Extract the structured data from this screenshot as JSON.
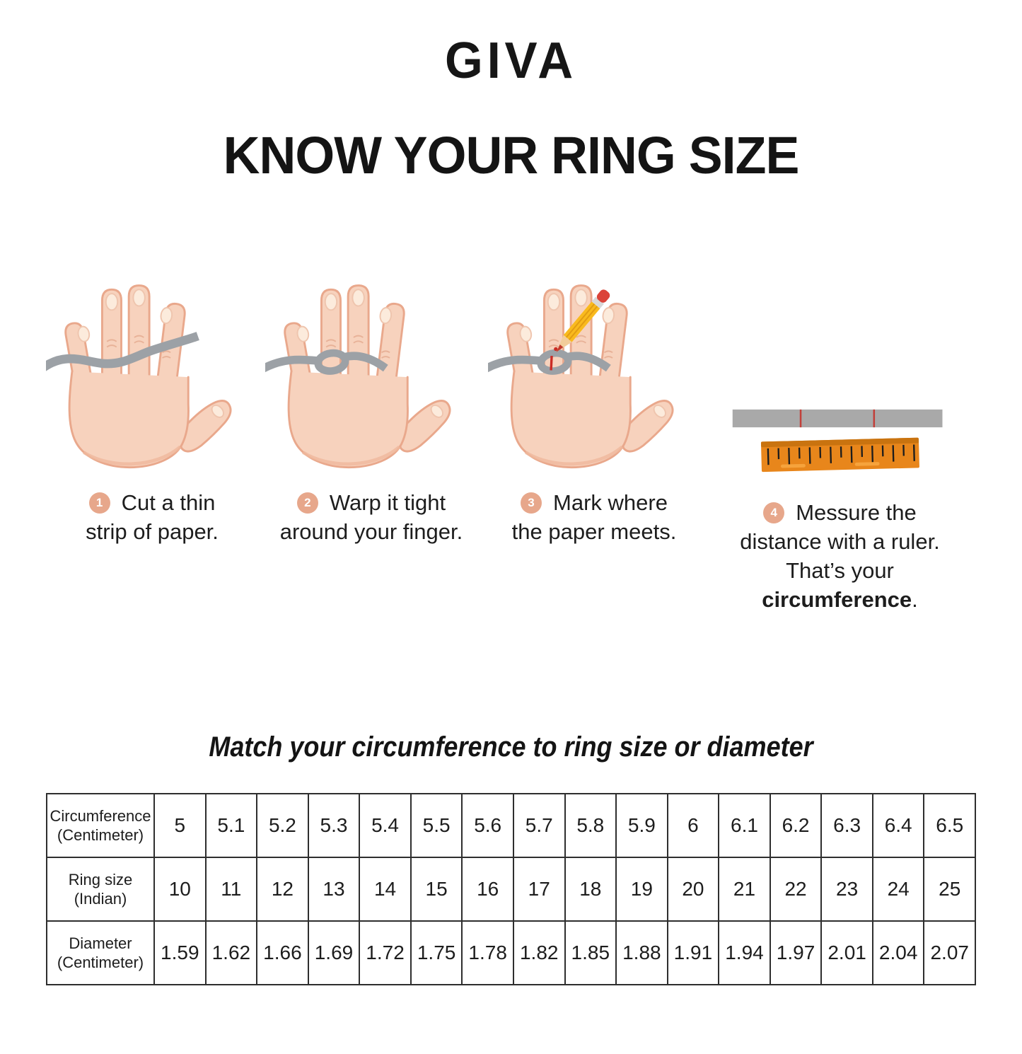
{
  "brand": {
    "logo_text": "GIVA"
  },
  "title": "KNOW YOUR RING SIZE",
  "steps": [
    {
      "number": "1",
      "line1": "Cut a thin",
      "line2": "strip of paper."
    },
    {
      "number": "2",
      "line1": "Warp it tight",
      "line2": "around your finger."
    },
    {
      "number": "3",
      "line1": "Mark where",
      "line2": "the paper meets."
    },
    {
      "number": "4",
      "line1": "Messure the",
      "line2": "distance with a ruler.",
      "line3_prefix": "That’s your ",
      "line3_bold": "circumference",
      "line3_suffix": "."
    }
  ],
  "subtitle": "Match your circumference to ring size or diameter",
  "table": {
    "rows": [
      {
        "label_lines": [
          "Circumference",
          "(Centimeter)"
        ],
        "values": [
          "5",
          "5.1",
          "5.2",
          "5.3",
          "5.4",
          "5.5",
          "5.6",
          "5.7",
          "5.8",
          "5.9",
          "6",
          "6.1",
          "6.2",
          "6.3",
          "6.4",
          "6.5"
        ]
      },
      {
        "label_lines": [
          "Ring size",
          "(Indian)"
        ],
        "values": [
          "10",
          "11",
          "12",
          "13",
          "14",
          "15",
          "16",
          "17",
          "18",
          "19",
          "20",
          "21",
          "22",
          "23",
          "24",
          "25"
        ]
      },
      {
        "label_lines": [
          "Diameter",
          "(Centimeter)"
        ],
        "values": [
          "1.59",
          "1.62",
          "1.66",
          "1.69",
          "1.72",
          "1.75",
          "1.78",
          "1.82",
          "1.85",
          "1.88",
          "1.91",
          "1.94",
          "1.97",
          "2.01",
          "2.04",
          "2.07"
        ]
      }
    ]
  },
  "colors": {
    "badge": "#E7A78B",
    "skin": "#F7D2BD",
    "skin_outline": "#E9A88C",
    "paper_strip": "#9CA1A6",
    "ruler_orange": "#E8861B",
    "mark_red": "#C2403A",
    "text": "#1d1d1d"
  }
}
